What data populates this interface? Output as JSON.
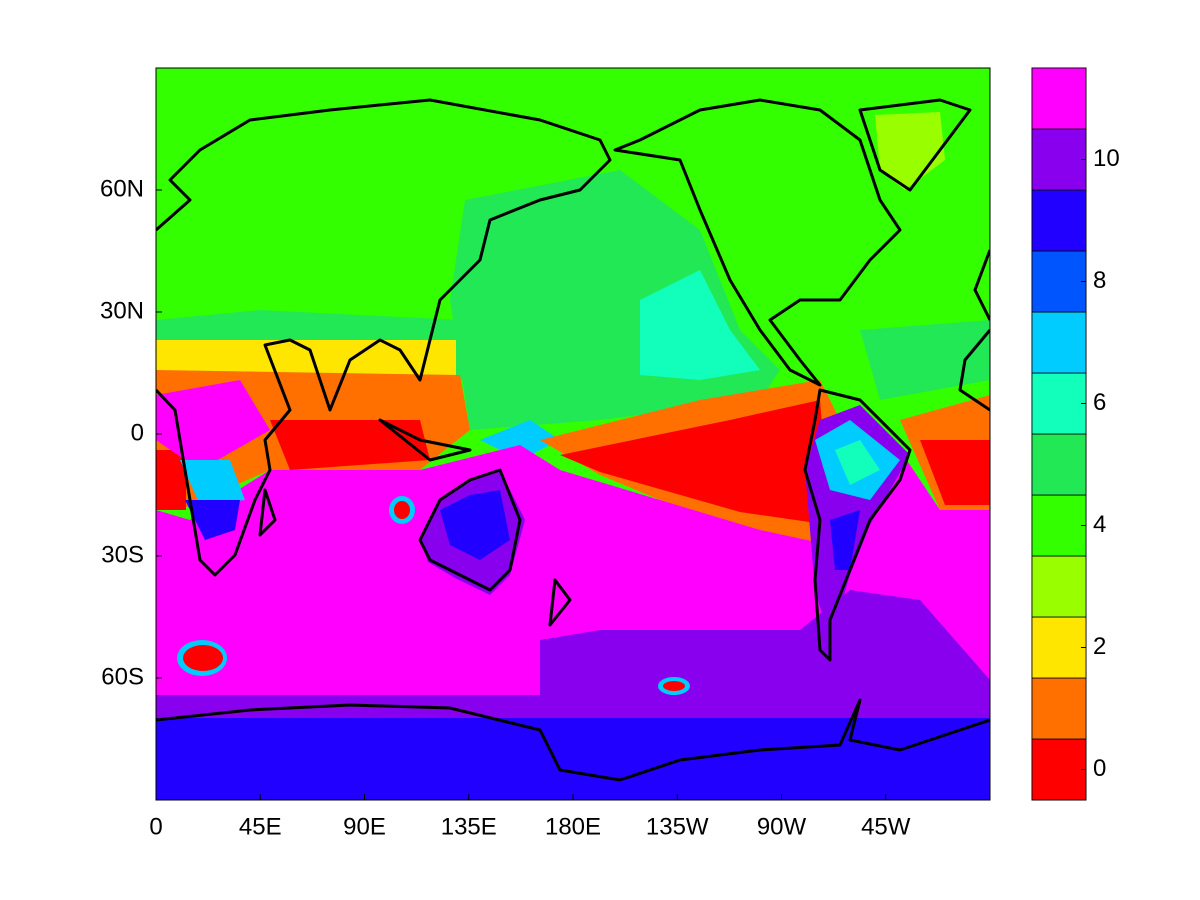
{
  "chart_data": {
    "type": "filled-contour-map",
    "xlim": [
      0,
      360
    ],
    "xticks": [
      0,
      {
        "value": 45,
        "label": "45E"
      },
      {
        "value": 90,
        "label": "90E"
      },
      {
        "value": 135,
        "label": "135E"
      },
      {
        "value": 180,
        "label": "180E"
      },
      {
        "value": 225,
        "label": "135W"
      },
      {
        "value": 270,
        "label": "90W"
      },
      {
        "value": 315,
        "label": "45W"
      }
    ],
    "ylim": [
      -90,
      90
    ],
    "yticks": [
      {
        "value": -60,
        "label": "60S"
      },
      {
        "value": -30,
        "label": "30S"
      },
      0,
      {
        "value": 30,
        "label": "30N"
      },
      {
        "value": 60,
        "label": "60N"
      }
    ],
    "colorbar": {
      "lim": [
        -0.5,
        11.5
      ],
      "ticks": [
        0,
        2,
        4,
        6,
        8,
        10
      ],
      "colors": [
        "#ff0000",
        "#ff7000",
        "#ffe600",
        "#99ff00",
        "#33ff00",
        "#22e855",
        "#11ffbb",
        "#00ccff",
        "#0055ff",
        "#2200ff",
        "#8800ee",
        "#ff00ff"
      ]
    }
  }
}
